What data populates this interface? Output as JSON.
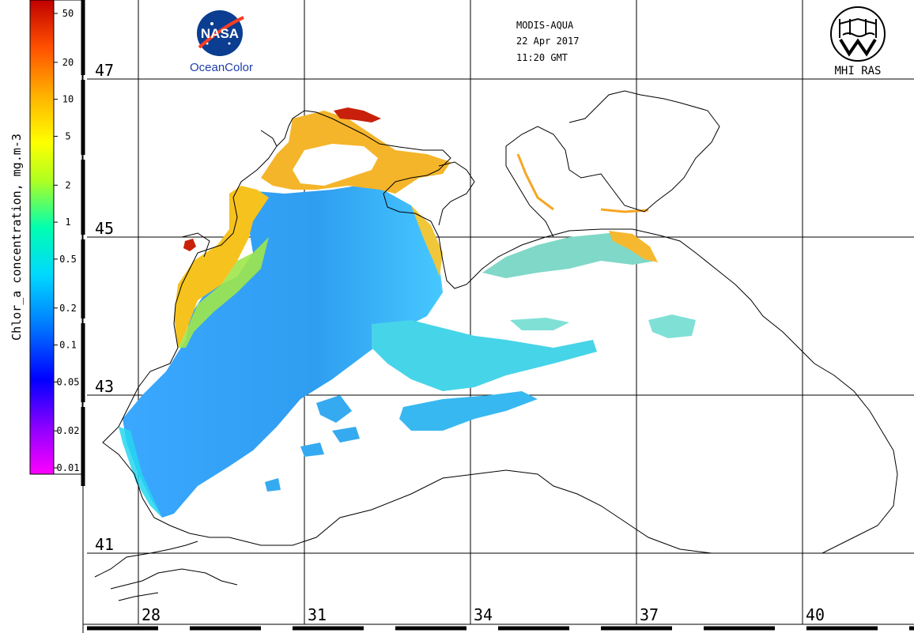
{
  "header": {
    "sensor": "MODIS-AQUA",
    "date": "22 Apr 2017",
    "time": "11:20 GMT"
  },
  "logos": {
    "left_emblem": "NASA",
    "left_caption": "OceanColor",
    "right_caption": "MHI RAS"
  },
  "colorbar": {
    "label": "Chlor_a concentration, mg.m-3",
    "ticks": [
      "50",
      "20",
      "10",
      "5",
      "2",
      "1",
      "0.5",
      "0.2",
      "0.1",
      "0.05",
      "0.02",
      "0.01"
    ],
    "tick_values": [
      50,
      20,
      10,
      5,
      2,
      1,
      0.5,
      0.2,
      0.1,
      0.05,
      0.02,
      0.01
    ],
    "colors": [
      "#ff00ff",
      "#8a00ff",
      "#0000ff",
      "#0080ff",
      "#00d8ff",
      "#00ffb0",
      "#b0ff20",
      "#ffff00",
      "#ffb000",
      "#ff5000",
      "#c00000"
    ],
    "scale": "log"
  },
  "axes": {
    "lat_labels": [
      "47",
      "45",
      "43",
      "41"
    ],
    "lat_values": [
      47,
      45,
      43,
      41
    ],
    "lon_labels": [
      "28",
      "31",
      "34",
      "37",
      "40"
    ],
    "lon_values": [
      28,
      31,
      34,
      37,
      40
    ]
  },
  "colors": {
    "coast": "#000000",
    "grid": "#000000",
    "background": "#ffffff"
  }
}
